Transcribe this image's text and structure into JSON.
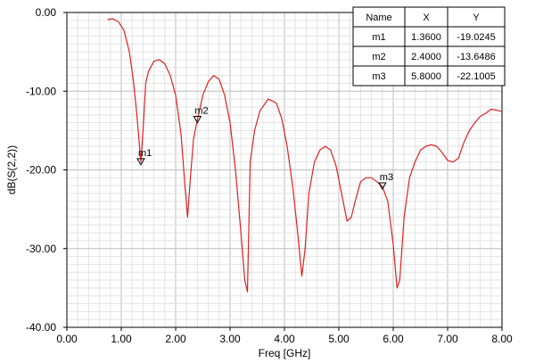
{
  "chart_data": {
    "type": "line",
    "xlabel": "Freq [GHz]",
    "ylabel": "dB(S(2,2))",
    "xlim": [
      0,
      8
    ],
    "ylim": [
      -40,
      0
    ],
    "x_ticks": [
      "0.00",
      "1.00",
      "2.00",
      "3.00",
      "4.00",
      "5.00",
      "6.00",
      "7.00",
      "8.00"
    ],
    "y_ticks": [
      "0.00",
      "-10.00",
      "-20.00",
      "-30.00",
      "-40.00"
    ],
    "grid": true,
    "series": [
      {
        "color": "#e02020",
        "x": [
          0.75,
          0.85,
          0.95,
          1.05,
          1.15,
          1.22,
          1.28,
          1.33,
          1.36,
          1.4,
          1.45,
          1.5,
          1.6,
          1.7,
          1.8,
          1.9,
          2.0,
          2.1,
          2.17,
          2.22,
          2.27,
          2.33,
          2.4,
          2.5,
          2.6,
          2.7,
          2.8,
          2.9,
          3.0,
          3.1,
          3.2,
          3.27,
          3.32,
          3.37,
          3.45,
          3.55,
          3.7,
          3.85,
          3.95,
          4.05,
          4.15,
          4.25,
          4.32,
          4.38,
          4.45,
          4.55,
          4.65,
          4.75,
          4.85,
          4.95,
          5.05,
          5.15,
          5.23,
          5.3,
          5.4,
          5.5,
          5.6,
          5.7,
          5.8,
          5.9,
          6.0,
          6.07,
          6.12,
          6.2,
          6.3,
          6.4,
          6.5,
          6.6,
          6.7,
          6.8,
          6.9,
          7.0,
          7.1,
          7.2,
          7.3,
          7.4,
          7.5,
          7.6,
          7.7,
          7.8,
          7.9,
          8.0
        ],
        "y": [
          -0.9,
          -0.8,
          -1.2,
          -2.3,
          -5.0,
          -8.5,
          -12.5,
          -16.5,
          -19.0,
          -15.0,
          -9.0,
          -7.5,
          -6.2,
          -6.0,
          -6.5,
          -8.0,
          -10.5,
          -15.5,
          -22.0,
          -26.0,
          -21.0,
          -16.0,
          -13.6,
          -10.5,
          -8.8,
          -8.0,
          -8.5,
          -10.5,
          -14.0,
          -20.0,
          -28.0,
          -34.0,
          -35.5,
          -19.0,
          -15.0,
          -12.5,
          -11.0,
          -11.5,
          -13.5,
          -17.0,
          -22.0,
          -28.5,
          -33.5,
          -30.0,
          -23.0,
          -19.0,
          -17.5,
          -17.0,
          -17.5,
          -19.5,
          -23.0,
          -26.5,
          -26.0,
          -24.0,
          -21.5,
          -21.0,
          -21.0,
          -21.5,
          -22.1,
          -24.0,
          -29.5,
          -35.0,
          -34.0,
          -26.0,
          -21.0,
          -19.0,
          -17.5,
          -17.0,
          -16.8,
          -17.0,
          -17.8,
          -18.8,
          -19.0,
          -18.5,
          -16.5,
          -15.0,
          -14.0,
          -13.2,
          -12.8,
          -12.3,
          -12.4,
          -12.6
        ]
      }
    ],
    "markers": [
      {
        "name": "m1",
        "x": 1.36,
        "y": -19.0245
      },
      {
        "name": "m2",
        "x": 2.4,
        "y": -13.6486
      },
      {
        "name": "m3",
        "x": 5.8,
        "y": -22.1005
      }
    ],
    "marker_table": {
      "headers": [
        "Name",
        "X",
        "Y"
      ],
      "rows": [
        [
          "m1",
          "1.3600",
          "-19.0245"
        ],
        [
          "m2",
          "2.4000",
          "-13.6486"
        ],
        [
          "m3",
          "5.8000",
          "-22.1005"
        ]
      ]
    }
  }
}
